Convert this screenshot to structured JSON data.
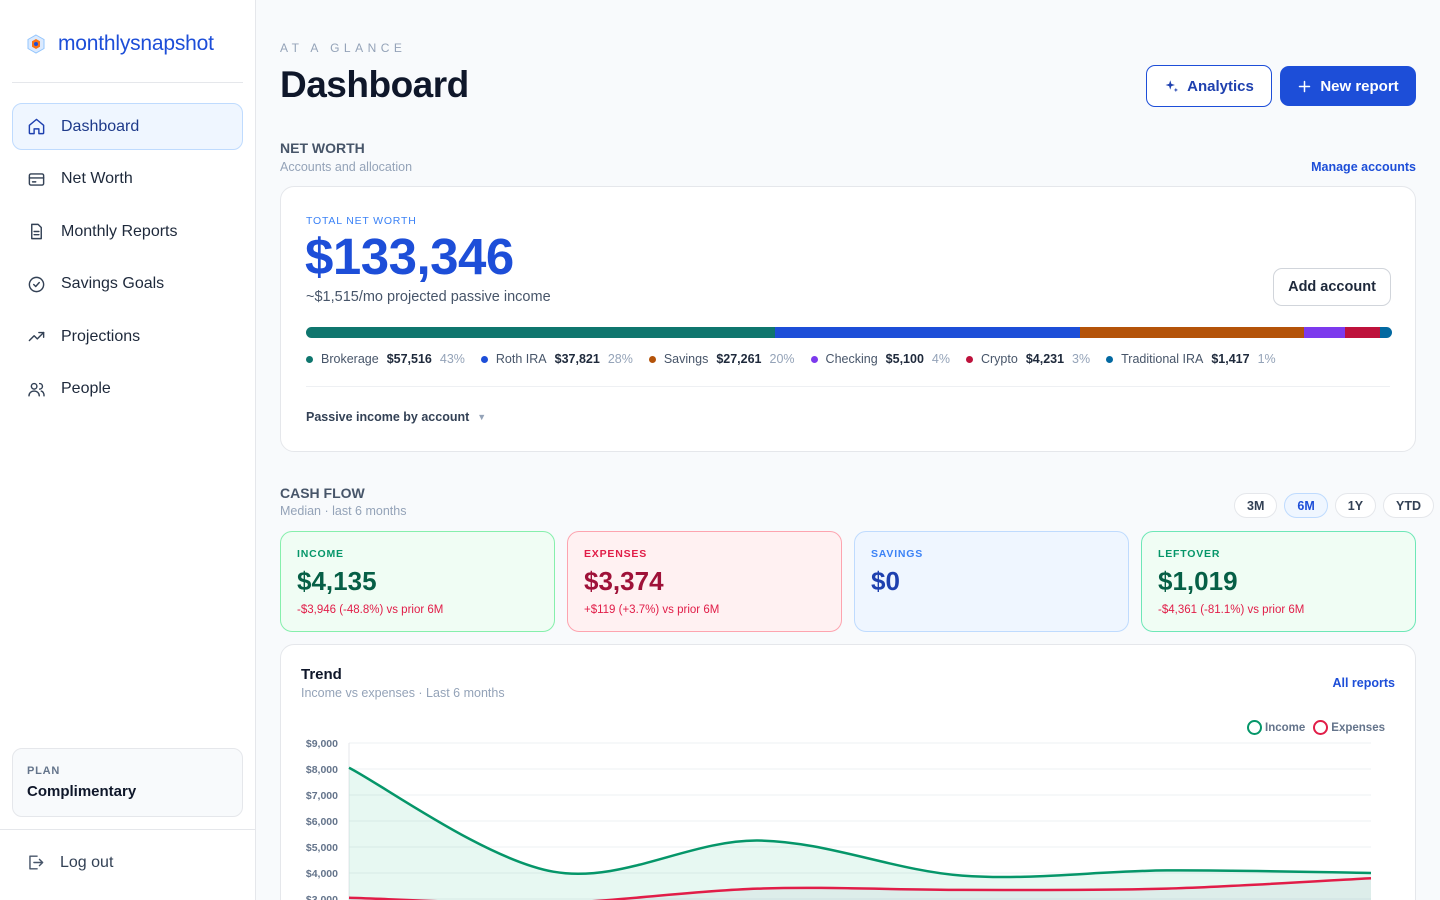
{
  "brand": {
    "name": "monthlysnapshot"
  },
  "nav": [
    {
      "label": "Dashboard",
      "icon": "home-icon",
      "active": true
    },
    {
      "label": "Net Worth",
      "icon": "card-icon"
    },
    {
      "label": "Monthly Reports",
      "icon": "document-icon"
    },
    {
      "label": "Savings Goals",
      "icon": "check-circle-icon"
    },
    {
      "label": "Projections",
      "icon": "trend-up-icon"
    },
    {
      "label": "People",
      "icon": "users-icon"
    }
  ],
  "plan": {
    "label": "PLAN",
    "value": "Complimentary"
  },
  "logout": {
    "label": "Log out"
  },
  "header": {
    "eyebrow": "AT A GLANCE",
    "title": "Dashboard",
    "analytics_label": "Analytics",
    "new_report_label": "New report"
  },
  "net_worth": {
    "title": "NET WORTH",
    "subtitle": "Accounts and allocation",
    "manage_label": "Manage accounts",
    "total_label": "TOTAL NET WORTH",
    "total_value": "$133,346",
    "passive_income": "~$1,515/mo projected passive income",
    "add_account_label": "Add account",
    "accounts": [
      {
        "name": "Brokerage",
        "value": "$57,516",
        "pct": "43%",
        "share": 43,
        "color": "#0f766e"
      },
      {
        "name": "Roth IRA",
        "value": "$37,821",
        "pct": "28%",
        "share": 28,
        "color": "#1d4ed8"
      },
      {
        "name": "Savings",
        "value": "$27,261",
        "pct": "20%",
        "share": 20.5,
        "color": "#b45309"
      },
      {
        "name": "Checking",
        "value": "$5,100",
        "pct": "4%",
        "share": 3.8,
        "color": "#7c3aed"
      },
      {
        "name": "Crypto",
        "value": "$4,231",
        "pct": "3%",
        "share": 3.2,
        "color": "#be123c"
      },
      {
        "name": "Traditional IRA",
        "value": "$1,417",
        "pct": "1%",
        "share": 1.1,
        "color": "#0369a1"
      }
    ],
    "passive_dropdown": "Passive income by account"
  },
  "cash_flow": {
    "title": "CASH FLOW",
    "subtitle": "Median · last 6 months",
    "ranges": [
      "3M",
      "6M",
      "1Y",
      "YTD"
    ],
    "active_range": "6M",
    "stats": [
      {
        "label": "INCOME",
        "value": "$4,135",
        "delta": "-$3,946 (-48.8%) vs prior 6M",
        "bg": "#f0fdf4",
        "border": "#86efac",
        "label_color": "#059669",
        "value_color": "#065f46"
      },
      {
        "label": "EXPENSES",
        "value": "$3,374",
        "delta": "+$119 (+3.7%) vs prior 6M",
        "bg": "#fff1f2",
        "border": "#fda4af",
        "label_color": "#e11d48",
        "value_color": "#9f1239"
      },
      {
        "label": "SAVINGS",
        "value": "$0",
        "delta": "",
        "bg": "#eff6ff",
        "border": "#bfdbfe",
        "label_color": "#3b82f6",
        "value_color": "#1e40af"
      },
      {
        "label": "LEFTOVER",
        "value": "$1,019",
        "delta": "-$4,361 (-81.1%) vs prior 6M",
        "bg": "#f0fdf4",
        "border": "#6ee7b7",
        "label_color": "#059669",
        "value_color": "#065f46"
      }
    ]
  },
  "trend": {
    "title": "Trend",
    "subtitle": "Income vs expenses · Last 6 months",
    "link_label": "All reports",
    "legend": [
      "Income",
      "Expenses"
    ]
  },
  "chart_data": {
    "type": "area",
    "title": "Trend",
    "x": [
      1,
      2,
      3,
      4,
      5,
      6
    ],
    "ylim": [
      3000,
      9000
    ],
    "yticks": [
      "$9,000",
      "$8,000",
      "$7,000",
      "$6,000",
      "$5,000",
      "$4,000",
      "$3,000"
    ],
    "ytick_values": [
      9000,
      8000,
      7000,
      6000,
      5000,
      4000,
      3000
    ],
    "series": [
      {
        "name": "Income",
        "values": [
          8050,
          4050,
          5250,
          3900,
          4100,
          4000
        ],
        "color": "#059669"
      },
      {
        "name": "Expenses",
        "values": [
          3050,
          2850,
          3400,
          3350,
          3400,
          3800
        ],
        "color": "#e11d48"
      }
    ],
    "grid": true,
    "legend_position": "top-right"
  }
}
